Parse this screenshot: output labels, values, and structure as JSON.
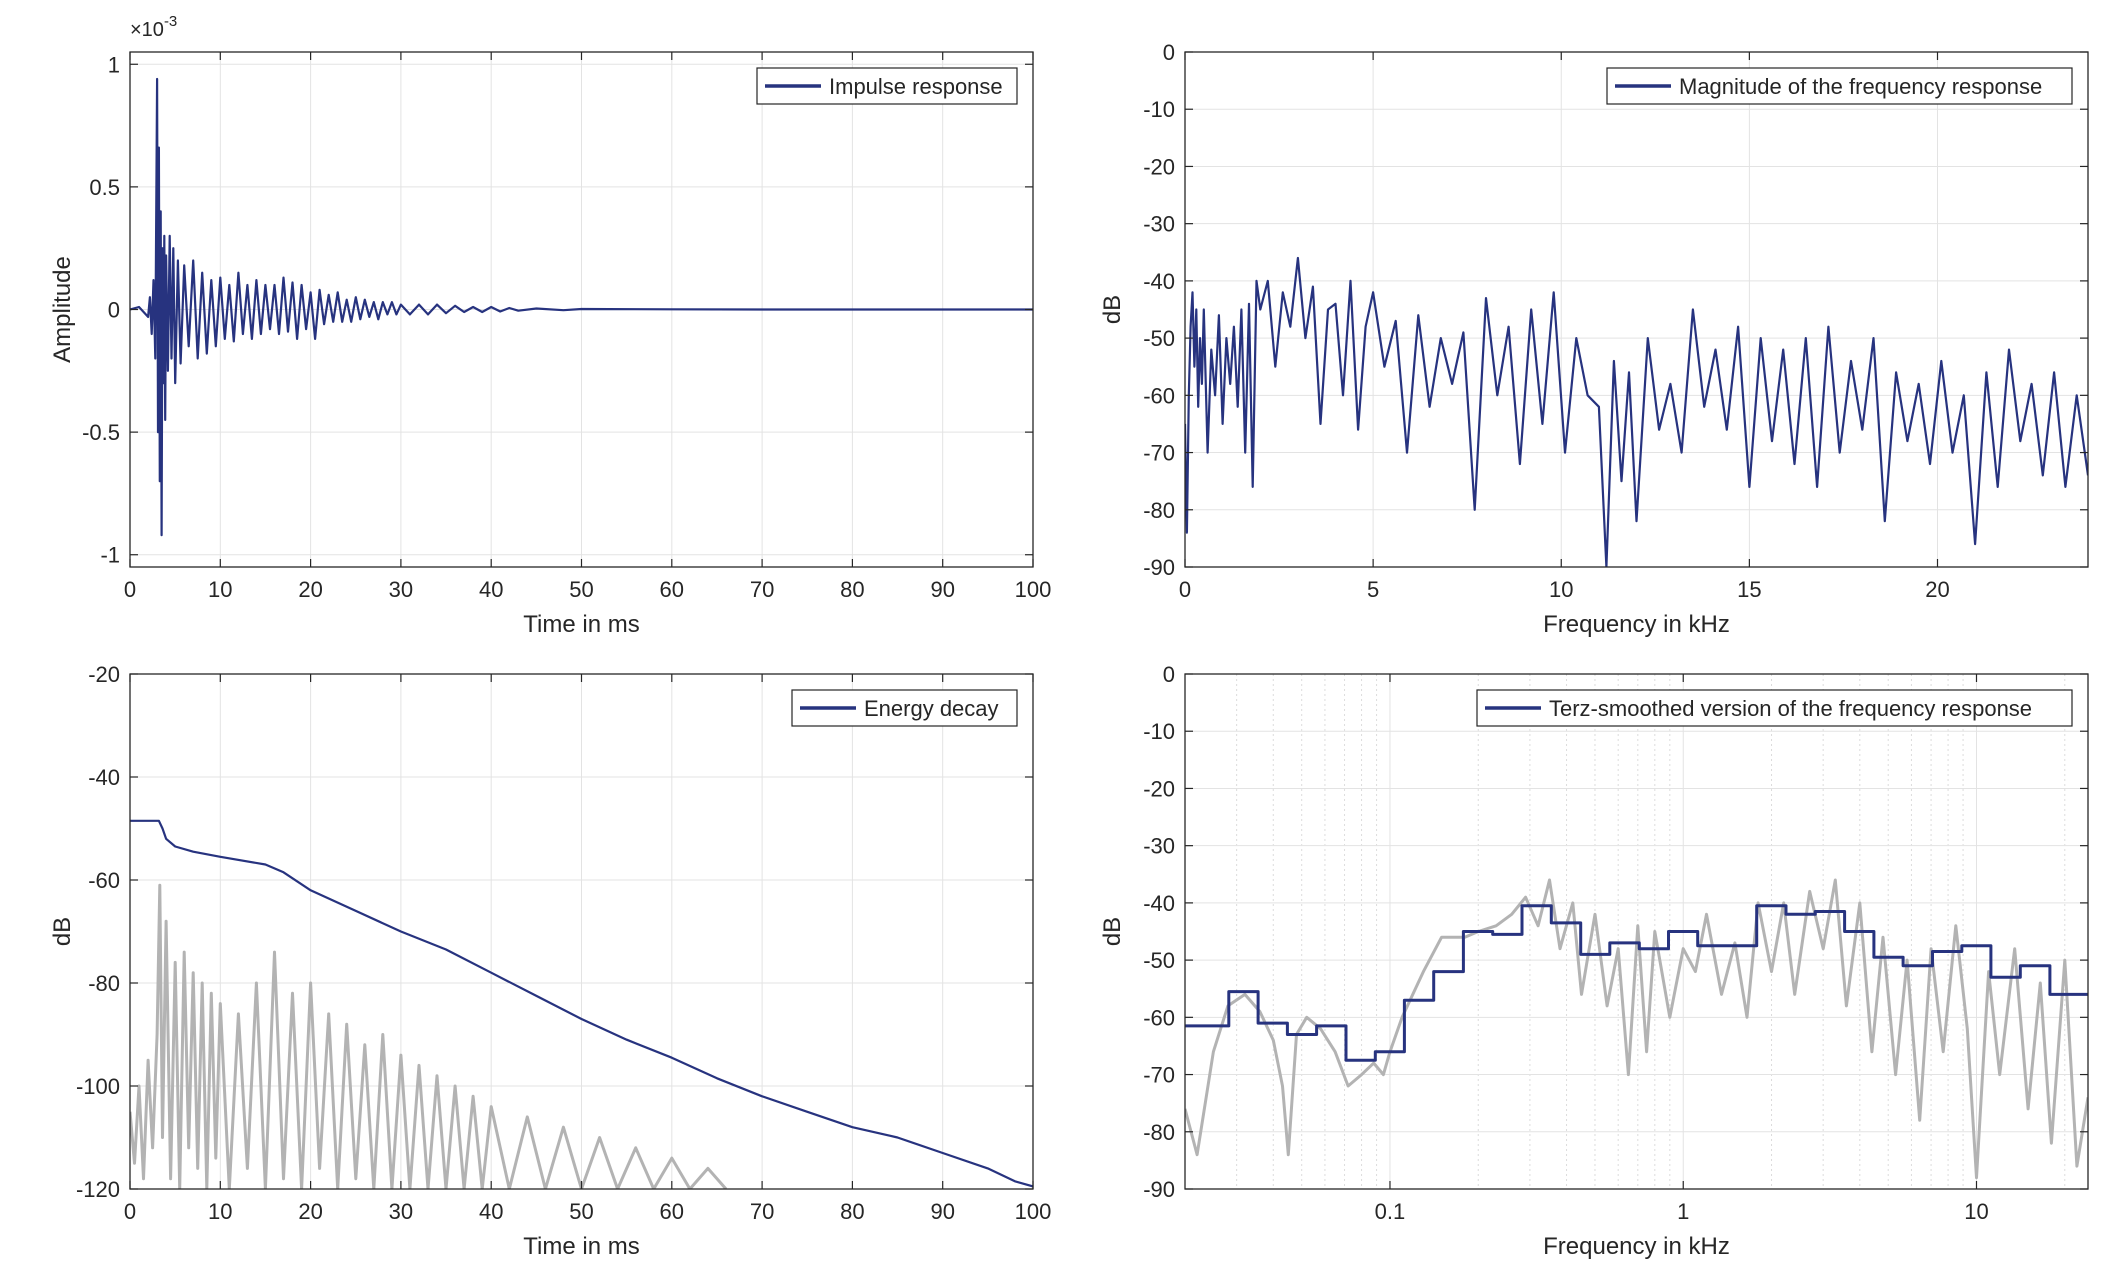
{
  "chart_data": [
    {
      "type": "line",
      "id": "impulse",
      "title": "",
      "xlabel": "Time in ms",
      "ylabel": "Amplitude",
      "exponent_label": "×10",
      "exponent_sup": "-3",
      "xlim": [
        0,
        100
      ],
      "ylim": [
        -1.05,
        1.05
      ],
      "xticks": [
        0,
        10,
        20,
        30,
        40,
        50,
        60,
        70,
        80,
        90,
        100
      ],
      "xtick_labels": [
        "0",
        "10",
        "20",
        "30",
        "40",
        "50",
        "60",
        "70",
        "80",
        "90",
        "100"
      ],
      "yticks": [
        -1,
        -0.5,
        0,
        0.5,
        1
      ],
      "ytick_labels": [
        "-1",
        "-0.5",
        "0",
        "0.5",
        "1"
      ],
      "grid": true,
      "legend_position": "top-right",
      "series": [
        {
          "name": "Impulse response",
          "color": "#27337f",
          "x": [
            0,
            1,
            2,
            2.2,
            2.4,
            2.6,
            2.8,
            3.0,
            3.1,
            3.2,
            3.3,
            3.4,
            3.5,
            3.6,
            3.7,
            3.8,
            3.9,
            4.0,
            4.2,
            4.4,
            4.6,
            4.8,
            5.0,
            5.3,
            5.6,
            6.0,
            6.5,
            7.0,
            7.5,
            8.0,
            8.5,
            9.0,
            9.5,
            10.0,
            10.5,
            11.0,
            11.5,
            12.0,
            12.5,
            13.0,
            13.5,
            14.0,
            14.5,
            15.0,
            15.5,
            16.0,
            16.5,
            17.0,
            17.5,
            18.0,
            18.5,
            19.0,
            19.5,
            20.0,
            20.5,
            21.0,
            21.5,
            22.0,
            22.5,
            23.0,
            23.5,
            24.0,
            24.5,
            25.0,
            25.5,
            26.0,
            26.5,
            27.0,
            27.5,
            28.0,
            28.5,
            29.0,
            29.5,
            30.0,
            31.0,
            32.0,
            33.0,
            34.0,
            35.0,
            36.0,
            37.0,
            38.0,
            39.0,
            40.0,
            41.0,
            42.0,
            43.0,
            45.0,
            48.0,
            50.0,
            60.0,
            70.0,
            80.0,
            90.0,
            100.0
          ],
          "y": [
            0,
            0.01,
            -0.03,
            0.05,
            -0.1,
            0.12,
            -0.2,
            0.94,
            -0.5,
            0.66,
            -0.7,
            0.4,
            -0.92,
            0.25,
            -0.3,
            0.3,
            -0.45,
            0.22,
            -0.25,
            0.3,
            -0.2,
            0.25,
            -0.3,
            0.2,
            -0.22,
            0.18,
            -0.15,
            0.2,
            -0.2,
            0.15,
            -0.18,
            0.12,
            -0.15,
            0.13,
            -0.12,
            0.1,
            -0.13,
            0.15,
            -0.1,
            0.1,
            -0.12,
            0.12,
            -0.1,
            0.1,
            -0.08,
            0.1,
            -0.1,
            0.13,
            -0.09,
            0.11,
            -0.12,
            0.1,
            -0.08,
            0.07,
            -0.12,
            0.08,
            -0.06,
            0.06,
            -0.05,
            0.07,
            -0.05,
            0.04,
            -0.05,
            0.05,
            -0.04,
            0.04,
            -0.03,
            0.03,
            -0.04,
            0.03,
            -0.02,
            0.03,
            -0.02,
            0.02,
            -0.02,
            0.02,
            -0.02,
            0.02,
            -0.015,
            0.015,
            -0.01,
            0.01,
            -0.01,
            0.01,
            -0.008,
            0.006,
            -0.005,
            0.004,
            -0.003,
            0.002,
            0.001,
            0.0,
            0.0,
            0.0,
            0.0
          ]
        }
      ]
    },
    {
      "type": "line",
      "id": "magnitude",
      "title": "",
      "xlabel": "Frequency in kHz",
      "ylabel": "dB",
      "xlim": [
        0,
        24
      ],
      "ylim": [
        -90,
        0
      ],
      "xticks": [
        0,
        5,
        10,
        15,
        20
      ],
      "xtick_labels": [
        "0",
        "5",
        "10",
        "15",
        "20"
      ],
      "yticks": [
        0,
        -10,
        -20,
        -30,
        -40,
        -50,
        -60,
        -70,
        -80,
        -90
      ],
      "ytick_labels": [
        "0",
        "-10",
        "-20",
        "-30",
        "-40",
        "-50",
        "-60",
        "-70",
        "-80",
        "-90"
      ],
      "grid": true,
      "legend_position": "top-right",
      "series": [
        {
          "name": "Magnitude of the frequency response",
          "color": "#27337f",
          "x": [
            0.0,
            0.05,
            0.1,
            0.15,
            0.2,
            0.25,
            0.3,
            0.35,
            0.4,
            0.45,
            0.5,
            0.6,
            0.7,
            0.8,
            0.9,
            1.0,
            1.1,
            1.2,
            1.3,
            1.4,
            1.5,
            1.6,
            1.7,
            1.8,
            1.9,
            2.0,
            2.2,
            2.4,
            2.6,
            2.8,
            3.0,
            3.2,
            3.4,
            3.6,
            3.8,
            4.0,
            4.2,
            4.4,
            4.6,
            4.8,
            5.0,
            5.3,
            5.6,
            5.9,
            6.2,
            6.5,
            6.8,
            7.1,
            7.4,
            7.7,
            8.0,
            8.3,
            8.6,
            8.9,
            9.2,
            9.5,
            9.8,
            10.1,
            10.4,
            10.7,
            11.0,
            11.2,
            11.4,
            11.6,
            11.8,
            12.0,
            12.3,
            12.6,
            12.9,
            13.2,
            13.5,
            13.8,
            14.1,
            14.4,
            14.7,
            15.0,
            15.3,
            15.6,
            15.9,
            16.2,
            16.5,
            16.8,
            17.1,
            17.4,
            17.7,
            18.0,
            18.3,
            18.6,
            18.9,
            19.2,
            19.5,
            19.8,
            20.1,
            20.4,
            20.7,
            21.0,
            21.3,
            21.6,
            21.9,
            22.2,
            22.5,
            22.8,
            23.1,
            23.4,
            23.7,
            24.0
          ],
          "y": [
            -65,
            -84,
            -60,
            -48,
            -42,
            -55,
            -45,
            -62,
            -50,
            -58,
            -45,
            -70,
            -52,
            -60,
            -46,
            -65,
            -50,
            -58,
            -48,
            -62,
            -45,
            -70,
            -44,
            -76,
            -40,
            -45,
            -40,
            -55,
            -42,
            -48,
            -36,
            -50,
            -41,
            -65,
            -45,
            -44,
            -60,
            -40,
            -66,
            -48,
            -42,
            -55,
            -47,
            -70,
            -46,
            -62,
            -50,
            -58,
            -49,
            -80,
            -43,
            -60,
            -48,
            -72,
            -45,
            -65,
            -42,
            -70,
            -50,
            -60,
            -62,
            -90,
            -54,
            -75,
            -56,
            -82,
            -50,
            -66,
            -58,
            -70,
            -45,
            -62,
            -52,
            -66,
            -48,
            -76,
            -50,
            -68,
            -52,
            -72,
            -50,
            -76,
            -48,
            -70,
            -54,
            -66,
            -50,
            -82,
            -56,
            -68,
            -58,
            -72,
            -54,
            -70,
            -60,
            -86,
            -56,
            -76,
            -52,
            -68,
            -58,
            -74,
            -56,
            -76,
            -60,
            -74
          ]
        }
      ]
    },
    {
      "type": "line",
      "id": "energy",
      "title": "",
      "xlabel": "Time in ms",
      "ylabel": "dB",
      "xlim": [
        0,
        100
      ],
      "ylim": [
        -120,
        -20
      ],
      "xticks": [
        0,
        10,
        20,
        30,
        40,
        50,
        60,
        70,
        80,
        90,
        100
      ],
      "xtick_labels": [
        "0",
        "10",
        "20",
        "30",
        "40",
        "50",
        "60",
        "70",
        "80",
        "90",
        "100"
      ],
      "yticks": [
        -20,
        -40,
        -60,
        -80,
        -100,
        -120
      ],
      "ytick_labels": [
        "-20",
        "-40",
        "-60",
        "-80",
        "-100",
        "-120"
      ],
      "grid": true,
      "legend_position": "top-right",
      "series": [
        {
          "name": "Energy decay",
          "color": "#27337f",
          "x": [
            0,
            2,
            3.2,
            3.6,
            4,
            5,
            7,
            10,
            15,
            17,
            20,
            25,
            30,
            35,
            40,
            45,
            50,
            55,
            60,
            65,
            70,
            75,
            80,
            85,
            90,
            95,
            98,
            100
          ],
          "y": [
            -48.5,
            -48.5,
            -48.5,
            -50,
            -52,
            -53.5,
            -54.5,
            -55.5,
            -57,
            -58.5,
            -62,
            -66,
            -70,
            -73.5,
            -78,
            -82.5,
            -87,
            -91,
            -94.5,
            -98.5,
            -102,
            -105,
            -108,
            -110,
            -113,
            -116,
            -118.5,
            -119.5
          ]
        },
        {
          "name": "",
          "color": "#b3b3b3",
          "x": [
            0,
            0.5,
            1,
            1.5,
            2,
            2.5,
            3,
            3.3,
            3.6,
            4,
            4.5,
            5,
            5.5,
            6,
            6.5,
            7,
            7.5,
            8,
            8.5,
            9,
            9.5,
            10,
            11,
            12,
            13,
            14,
            15,
            16,
            17,
            18,
            19,
            20,
            21,
            22,
            23,
            24,
            25,
            26,
            27,
            28,
            29,
            30,
            31,
            32,
            33,
            34,
            35,
            36,
            37,
            38,
            39,
            40,
            42,
            44,
            46,
            48,
            50,
            52,
            54,
            56,
            58,
            60,
            62,
            64,
            66
          ],
          "y": [
            -105,
            -115,
            -100,
            -118,
            -95,
            -112,
            -90,
            -61,
            -110,
            -68,
            -118,
            -76,
            -120,
            -74,
            -112,
            -78,
            -116,
            -80,
            -120,
            -82,
            -114,
            -84,
            -120,
            -86,
            -116,
            -80,
            -120,
            -74,
            -118,
            -82,
            -120,
            -80,
            -116,
            -86,
            -120,
            -88,
            -118,
            -92,
            -120,
            -90,
            -120,
            -94,
            -120,
            -96,
            -120,
            -98,
            -120,
            -100,
            -120,
            -102,
            -120,
            -104,
            -120,
            -106,
            -120,
            -108,
            -120,
            -110,
            -120,
            -112,
            -120,
            -114,
            -120,
            -116,
            -120
          ]
        }
      ]
    },
    {
      "type": "line",
      "id": "terz",
      "title": "",
      "xlabel": "Frequency in kHz",
      "ylabel": "dB",
      "xscale": "log",
      "xlim": [
        0.02,
        24
      ],
      "ylim": [
        -90,
        0
      ],
      "xticks": [
        0.1,
        1,
        10
      ],
      "xtick_labels": [
        "0.1",
        "1",
        "10"
      ],
      "yticks": [
        0,
        -10,
        -20,
        -30,
        -40,
        -50,
        -60,
        -70,
        -80,
        -90
      ],
      "ytick_labels": [
        "0",
        "-10",
        "-20",
        "-30",
        "-40",
        "-50",
        "-60",
        "-70",
        "-80",
        "-90"
      ],
      "grid": true,
      "legend_position": "top-right",
      "series": [
        {
          "name": "Terz-smoothed version of the frequency response",
          "color": "#27337f",
          "step": true,
          "x": [
            0.02,
            0.0224,
            0.0282,
            0.0355,
            0.0447,
            0.0562,
            0.0708,
            0.0891,
            0.112,
            0.141,
            0.178,
            0.224,
            0.282,
            0.355,
            0.447,
            0.562,
            0.708,
            0.891,
            1.12,
            1.41,
            1.78,
            2.24,
            2.82,
            3.55,
            4.47,
            5.62,
            7.08,
            8.91,
            11.2,
            14.1,
            17.8,
            24
          ],
          "y": [
            -61.5,
            -61.5,
            -55.5,
            -61,
            -63,
            -61.5,
            -67.5,
            -66,
            -57,
            -52,
            -45,
            -45.5,
            -40.5,
            -43.5,
            -49,
            -47,
            -48,
            -45,
            -47.5,
            -47.5,
            -40.5,
            -42,
            -41.5,
            -45,
            -49.5,
            -51,
            -48.5,
            -47.5,
            -53,
            -51,
            -56,
            -56
          ]
        },
        {
          "name": "",
          "color": "#b3b3b3",
          "x": [
            0.02,
            0.022,
            0.025,
            0.028,
            0.032,
            0.036,
            0.04,
            0.043,
            0.045,
            0.048,
            0.052,
            0.058,
            0.065,
            0.072,
            0.08,
            0.088,
            0.095,
            0.1,
            0.11,
            0.13,
            0.15,
            0.18,
            0.2,
            0.23,
            0.26,
            0.29,
            0.32,
            0.35,
            0.38,
            0.42,
            0.45,
            0.5,
            0.55,
            0.6,
            0.65,
            0.7,
            0.75,
            0.8,
            0.9,
            1.0,
            1.1,
            1.2,
            1.35,
            1.5,
            1.65,
            1.8,
            2.0,
            2.2,
            2.4,
            2.7,
            3.0,
            3.3,
            3.6,
            4.0,
            4.4,
            4.8,
            5.3,
            5.8,
            6.4,
            7.0,
            7.7,
            8.5,
            9.3,
            10.0,
            11.0,
            12.0,
            13.5,
            15.0,
            16.5,
            18.0,
            20.0,
            22.0,
            24.0
          ],
          "y": [
            -76,
            -84,
            -66,
            -58,
            -56,
            -59,
            -64,
            -72,
            -84,
            -63,
            -60,
            -62,
            -66,
            -72,
            -70,
            -68,
            -70,
            -66,
            -60,
            -52,
            -46,
            -46,
            -45,
            -44,
            -42,
            -39,
            -44,
            -36,
            -48,
            -40,
            -56,
            -42,
            -58,
            -48,
            -70,
            -44,
            -66,
            -45,
            -60,
            -48,
            -52,
            -42,
            -56,
            -47,
            -60,
            -40,
            -52,
            -40,
            -56,
            -38,
            -48,
            -36,
            -58,
            -40,
            -66,
            -46,
            -70,
            -50,
            -78,
            -48,
            -66,
            -44,
            -62,
            -88,
            -52,
            -70,
            -48,
            -76,
            -54,
            -82,
            -50,
            -86,
            -74
          ]
        }
      ]
    }
  ]
}
